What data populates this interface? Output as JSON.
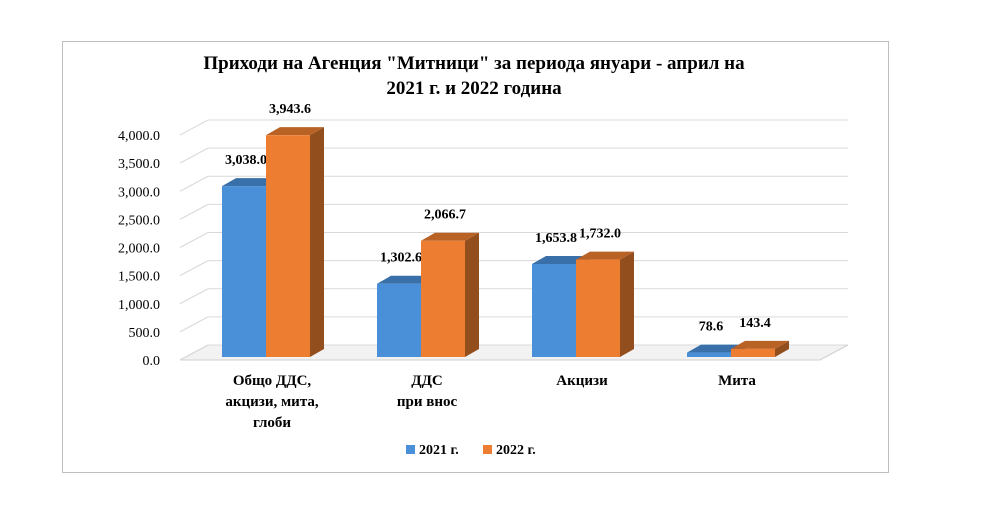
{
  "chart_data": {
    "type": "bar",
    "title": "Приходи на Агенция \"Митници\" за периода януари - април на 2021 г. и 2022 година",
    "title_lines": [
      "Приходи на Агенция \"Митници\" за периода януари - април на",
      "2021 г. и 2022 година"
    ],
    "categories": [
      [
        "Общо ДДС,",
        "акцизи, мита,",
        "глоби"
      ],
      [
        "ДДС",
        "при внос"
      ],
      [
        "Акцизи"
      ],
      [
        "Мита"
      ]
    ],
    "series": [
      {
        "name": "2021 г.",
        "values": [
          3038.0,
          1302.6,
          1653.8,
          78.6
        ],
        "labels": [
          "3,038.0",
          "1,302.6",
          "1,653.8",
          "78.6"
        ],
        "color": "#4a90d9"
      },
      {
        "name": "2022 г.",
        "values": [
          3943.6,
          2066.7,
          1732.0,
          143.4
        ],
        "labels": [
          "3,943.6",
          "2,066.7",
          "1,732.0",
          "143.4"
        ],
        "color": "#ed7d31"
      }
    ],
    "yticks": [
      "0.0",
      "500.0",
      "1,000.0",
      "1,500.0",
      "2,000.0",
      "2,500.0",
      "3,000.0",
      "3,500.0",
      "4,000.0"
    ],
    "ylim": [
      0,
      4000
    ],
    "grid": true,
    "legend_position": "bottom",
    "style": "3d-column"
  }
}
